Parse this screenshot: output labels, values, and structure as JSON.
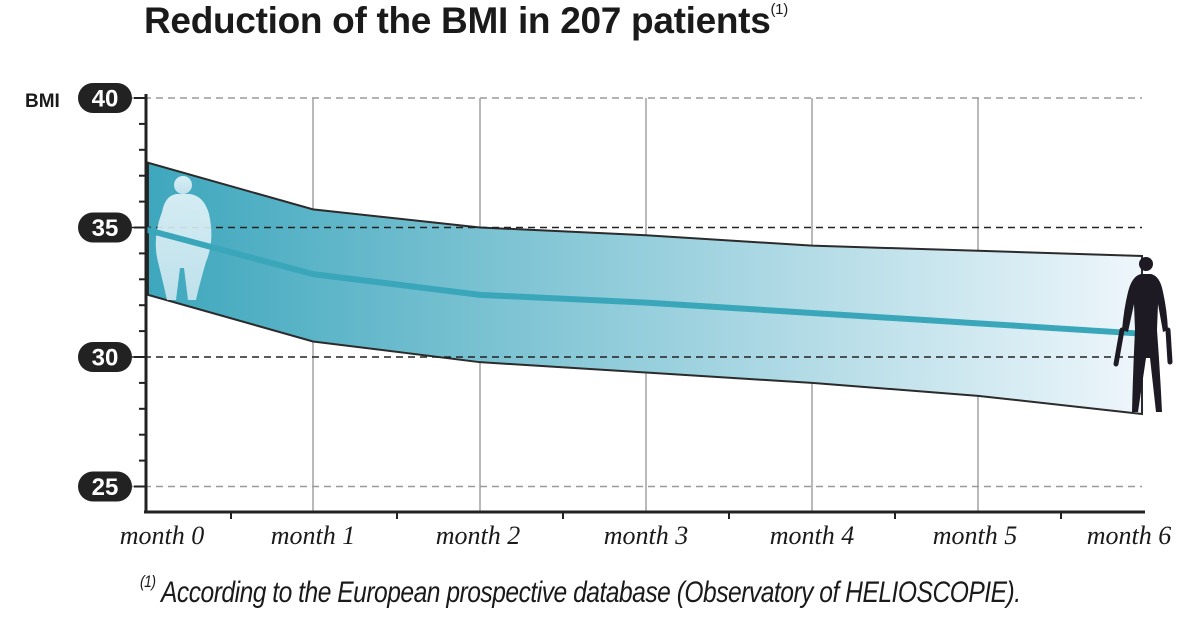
{
  "colors": {
    "band_dark": "#3ea7bd",
    "band_light": "#eef6fb",
    "mean_line": "#3aa6ba",
    "badge": "#222222",
    "grid": "#9a9a9a",
    "axis": "#222222",
    "silhouette_start": "#dbeef5",
    "silhouette_end": "#1e1a24"
  },
  "chart_data": {
    "type": "area",
    "title": "Reduction of the BMI in 207 patients",
    "title_note_marker": "(1)",
    "ylabel": "BMI",
    "xlabel": "",
    "categories": [
      "month 0",
      "month 1",
      "month 2",
      "month 3",
      "month 4",
      "month 5",
      "month 6"
    ],
    "x": [
      0,
      1,
      2,
      3,
      4,
      5,
      6
    ],
    "ylim": [
      24,
      40
    ],
    "yticks": [
      25,
      30,
      35,
      40
    ],
    "grid": "dashed horizontal at ticks, solid vertical at months",
    "series": [
      {
        "name": "upper bound",
        "values": [
          37.5,
          35.7,
          35.0,
          34.7,
          34.3,
          34.1,
          33.9
        ]
      },
      {
        "name": "mean BMI",
        "values": [
          34.9,
          33.2,
          32.4,
          32.1,
          31.7,
          31.3,
          30.9
        ]
      },
      {
        "name": "lower bound",
        "values": [
          32.4,
          30.6,
          29.8,
          29.4,
          29.0,
          28.5,
          27.8
        ]
      }
    ]
  },
  "footnote": {
    "marker": "(1)",
    "text": "According to the European prospective database (Observatory of HELIOSCOPIE)."
  }
}
